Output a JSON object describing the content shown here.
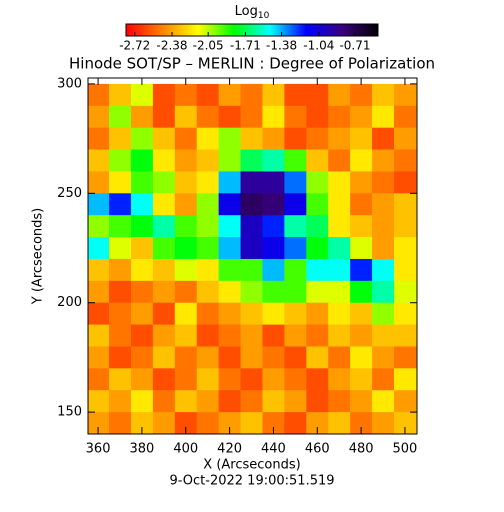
{
  "chart_data": {
    "type": "heatmap",
    "title": "Hinode SOT/SP – MERLIN : Degree of Polarization",
    "colorbar_label": "Log",
    "colorbar_label_sub": "10",
    "colorbar_ticks": [
      -2.72,
      -2.38,
      -2.05,
      -1.71,
      -1.38,
      -1.04,
      -0.71
    ],
    "clim": [
      -2.8,
      -0.5
    ],
    "colormap": [
      "#ff0000",
      "#ff8000",
      "#ffff00",
      "#00ff00",
      "#00ffff",
      "#0000ff",
      "#3a0080",
      "#000000"
    ],
    "x_label": "X (Arcseconds)",
    "y_label": "Y (Arcseconds)",
    "date": "9-Oct-2022 19:00:51.519",
    "xlim": [
      355.4,
      505.5
    ],
    "ylim": [
      140,
      302.7
    ],
    "xticks": [
      360,
      380,
      400,
      420,
      440,
      460,
      480,
      500
    ],
    "yticks": [
      150,
      200,
      250,
      300
    ],
    "x": [
      360,
      370,
      380,
      390,
      400,
      410,
      420,
      430,
      440,
      450,
      460,
      470,
      480,
      490,
      500
    ],
    "y": [
      295,
      285,
      275,
      265,
      255,
      245,
      235,
      225,
      215,
      205,
      195,
      185,
      175,
      165,
      155,
      145
    ],
    "cell_size": 10,
    "z": [
      [
        -2.5,
        -2.3,
        -2.1,
        -2.6,
        -2.5,
        -2.6,
        -2.4,
        -2.5,
        -2.3,
        -2.6,
        -2.6,
        -2.4,
        -2.5,
        -2.3,
        -2.4
      ],
      [
        -2.4,
        -2.0,
        -2.4,
        -2.6,
        -2.3,
        -2.5,
        -2.6,
        -2.5,
        -2.2,
        -2.5,
        -2.6,
        -2.5,
        -2.4,
        -2.2,
        -2.5
      ],
      [
        -2.5,
        -2.3,
        -2.0,
        -2.3,
        -2.5,
        -2.2,
        -2.0,
        -2.3,
        -2.4,
        -2.6,
        -2.5,
        -2.4,
        -2.3,
        -2.6,
        -2.4
      ],
      [
        -2.3,
        -2.0,
        -1.8,
        -2.2,
        -2.4,
        -2.3,
        -2.0,
        -1.7,
        -1.6,
        -1.9,
        -2.3,
        -2.5,
        -2.2,
        -2.4,
        -2.5
      ],
      [
        -2.4,
        -2.2,
        -1.9,
        -2.0,
        -2.3,
        -2.2,
        -1.4,
        -0.9,
        -0.9,
        -1.3,
        -2.0,
        -2.2,
        -2.4,
        -2.5,
        -2.6
      ],
      [
        -1.4,
        -1.2,
        -1.5,
        -2.2,
        -2.4,
        -2.0,
        -1.1,
        -0.75,
        -0.8,
        -1.1,
        -1.9,
        -2.2,
        -2.5,
        -2.4,
        -2.3
      ],
      [
        -2.0,
        -1.9,
        -1.8,
        -1.6,
        -1.9,
        -2.0,
        -1.5,
        -1.0,
        -1.2,
        -1.6,
        -1.7,
        -2.2,
        -2.3,
        -2.4,
        -2.3
      ],
      [
        -1.5,
        -2.1,
        -2.3,
        -1.9,
        -1.8,
        -1.9,
        -1.4,
        -1.0,
        -1.1,
        -1.3,
        -1.8,
        -1.6,
        -2.1,
        -2.4,
        -2.2
      ],
      [
        -2.3,
        -2.4,
        -2.2,
        -2.3,
        -2.1,
        -2.2,
        -1.9,
        -1.9,
        -1.4,
        -1.9,
        -1.5,
        -1.5,
        -1.2,
        -1.5,
        -2.2
      ],
      [
        -2.4,
        -2.6,
        -2.5,
        -2.4,
        -2.5,
        -2.3,
        -2.2,
        -2.0,
        -1.9,
        -1.9,
        -2.1,
        -2.1,
        -1.8,
        -1.6,
        -2.1
      ],
      [
        -2.6,
        -2.5,
        -2.4,
        -2.6,
        -2.2,
        -2.5,
        -2.4,
        -2.3,
        -2.2,
        -2.3,
        -2.4,
        -2.2,
        -2.3,
        -2.0,
        -2.2
      ],
      [
        -2.3,
        -2.5,
        -2.6,
        -2.4,
        -2.3,
        -2.6,
        -2.5,
        -2.4,
        -2.6,
        -2.4,
        -2.5,
        -2.3,
        -2.4,
        -2.3,
        -2.3
      ],
      [
        -2.4,
        -2.6,
        -2.5,
        -2.3,
        -2.5,
        -2.4,
        -2.6,
        -2.4,
        -2.5,
        -2.6,
        -2.3,
        -2.5,
        -2.2,
        -2.4,
        -2.5
      ],
      [
        -2.5,
        -2.3,
        -2.4,
        -2.6,
        -2.5,
        -2.3,
        -2.5,
        -2.6,
        -2.4,
        -2.5,
        -2.6,
        -2.4,
        -2.3,
        -2.5,
        -2.2
      ],
      [
        -2.3,
        -2.4,
        -2.2,
        -2.5,
        -2.3,
        -2.4,
        -2.6,
        -2.5,
        -2.3,
        -2.4,
        -2.6,
        -2.5,
        -2.4,
        -2.2,
        -2.4
      ],
      [
        -2.4,
        -2.5,
        -2.3,
        -2.4,
        -2.6,
        -2.5,
        -2.4,
        -2.3,
        -2.5,
        -2.6,
        -2.4,
        -2.3,
        -2.5,
        -2.4,
        -2.3
      ]
    ]
  }
}
